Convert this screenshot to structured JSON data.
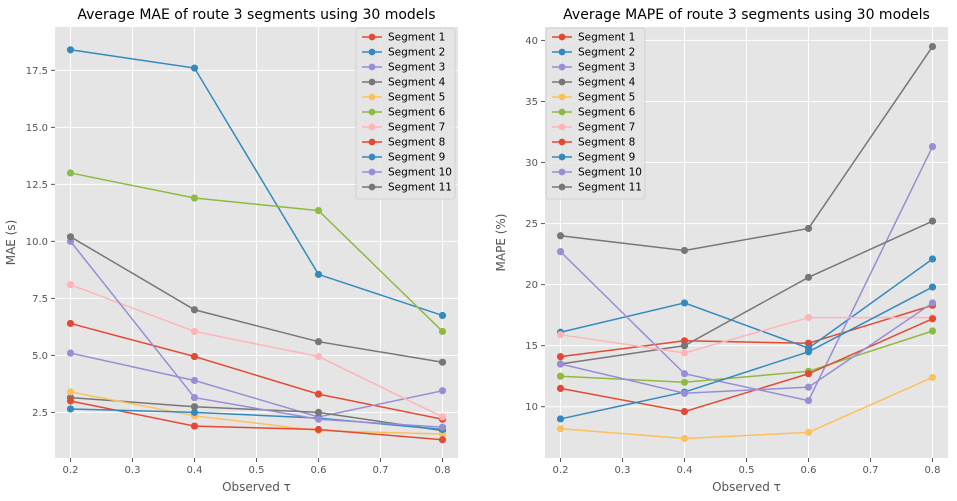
{
  "chart_data": [
    {
      "type": "line",
      "title": "Average MAE of route 3 segments using 30 models",
      "xlabel": "Observed τ",
      "ylabel": "MAE (s)",
      "x": [
        0.2,
        0.4,
        0.6,
        0.8
      ],
      "xlim": [
        0.175,
        0.825
      ],
      "ylim": [
        0.5,
        19.4
      ],
      "xticks": [
        0.2,
        0.3,
        0.4,
        0.5,
        0.6,
        0.7,
        0.8
      ],
      "xtick_labels": [
        "0.2",
        "0.3",
        "0.4",
        "0.5",
        "0.6",
        "0.7",
        "0.8"
      ],
      "yticks": [
        2.5,
        5.0,
        7.5,
        10.0,
        12.5,
        15.0,
        17.5
      ],
      "ytick_labels": [
        "2.5",
        "5.0",
        "7.5",
        "10.0",
        "12.5",
        "15.0",
        "17.5"
      ],
      "grid": true,
      "legend_position": "top-right",
      "series": [
        {
          "name": "Segment 1",
          "color": "#E24A33",
          "values": [
            6.4,
            4.95,
            3.3,
            2.2
          ]
        },
        {
          "name": "Segment 2",
          "color": "#348ABD",
          "values": [
            18.4,
            17.6,
            8.55,
            6.75
          ]
        },
        {
          "name": "Segment 3",
          "color": "#988ED5",
          "values": [
            5.1,
            3.9,
            2.3,
            3.45
          ]
        },
        {
          "name": "Segment 4",
          "color": "#777777",
          "values": [
            3.15,
            2.75,
            2.5,
            1.7
          ]
        },
        {
          "name": "Segment 5",
          "color": "#FBC15E",
          "values": [
            3.4,
            2.35,
            1.7,
            1.55
          ]
        },
        {
          "name": "Segment 6",
          "color": "#8EBA42",
          "values": [
            13.0,
            11.9,
            11.35,
            6.05
          ]
        },
        {
          "name": "Segment 7",
          "color": "#FFB5B8",
          "values": [
            8.1,
            6.05,
            4.95,
            2.3
          ]
        },
        {
          "name": "Segment 8",
          "color": "#E24A33",
          "values": [
            3.0,
            1.9,
            1.75,
            1.3
          ]
        },
        {
          "name": "Segment 9",
          "color": "#348ABD",
          "values": [
            2.65,
            2.5,
            2.25,
            1.75
          ]
        },
        {
          "name": "Segment 10",
          "color": "#988ED5",
          "values": [
            10.0,
            3.15,
            2.2,
            1.85
          ]
        },
        {
          "name": "Segment 11",
          "color": "#777777",
          "values": [
            10.2,
            7.0,
            5.6,
            4.7
          ]
        }
      ]
    },
    {
      "type": "line",
      "title": "Average MAPE of route 3 segments using 30 models",
      "xlabel": "Observed τ",
      "ylabel": "MAPE (%)",
      "x": [
        0.2,
        0.4,
        0.6,
        0.8
      ],
      "xlim": [
        0.175,
        0.825
      ],
      "ylim": [
        5.8,
        41.1
      ],
      "xticks": [
        0.2,
        0.3,
        0.4,
        0.5,
        0.6,
        0.7,
        0.8
      ],
      "xtick_labels": [
        "0.2",
        "0.3",
        "0.4",
        "0.5",
        "0.6",
        "0.7",
        "0.8"
      ],
      "yticks": [
        10,
        15,
        20,
        25,
        30,
        35,
        40
      ],
      "ytick_labels": [
        "10",
        "15",
        "20",
        "25",
        "30",
        "35",
        "40"
      ],
      "grid": true,
      "legend_position": "top-left",
      "series": [
        {
          "name": "Segment 1",
          "color": "#E24A33",
          "values": [
            14.1,
            15.4,
            15.2,
            18.3
          ]
        },
        {
          "name": "Segment 2",
          "color": "#348ABD",
          "values": [
            16.1,
            18.5,
            14.8,
            22.1
          ]
        },
        {
          "name": "Segment 3",
          "color": "#988ED5",
          "values": [
            22.7,
            12.7,
            10.5,
            31.3
          ]
        },
        {
          "name": "Segment 4",
          "color": "#777777",
          "values": [
            13.5,
            15.0,
            20.6,
            25.2
          ]
        },
        {
          "name": "Segment 5",
          "color": "#FBC15E",
          "values": [
            8.2,
            7.4,
            7.9,
            12.4
          ]
        },
        {
          "name": "Segment 6",
          "color": "#8EBA42",
          "values": [
            12.5,
            12.0,
            12.9,
            16.2
          ]
        },
        {
          "name": "Segment 7",
          "color": "#FFB5B8",
          "values": [
            15.9,
            14.4,
            17.3,
            17.3
          ]
        },
        {
          "name": "Segment 8",
          "color": "#E24A33",
          "values": [
            11.5,
            9.6,
            12.7,
            17.2
          ]
        },
        {
          "name": "Segment 9",
          "color": "#348ABD",
          "values": [
            9.0,
            11.2,
            14.5,
            19.8
          ]
        },
        {
          "name": "Segment 10",
          "color": "#988ED5",
          "values": [
            13.5,
            11.1,
            11.6,
            18.5
          ]
        },
        {
          "name": "Segment 11",
          "color": "#777777",
          "values": [
            24.0,
            22.8,
            24.6,
            39.5
          ]
        }
      ]
    }
  ]
}
